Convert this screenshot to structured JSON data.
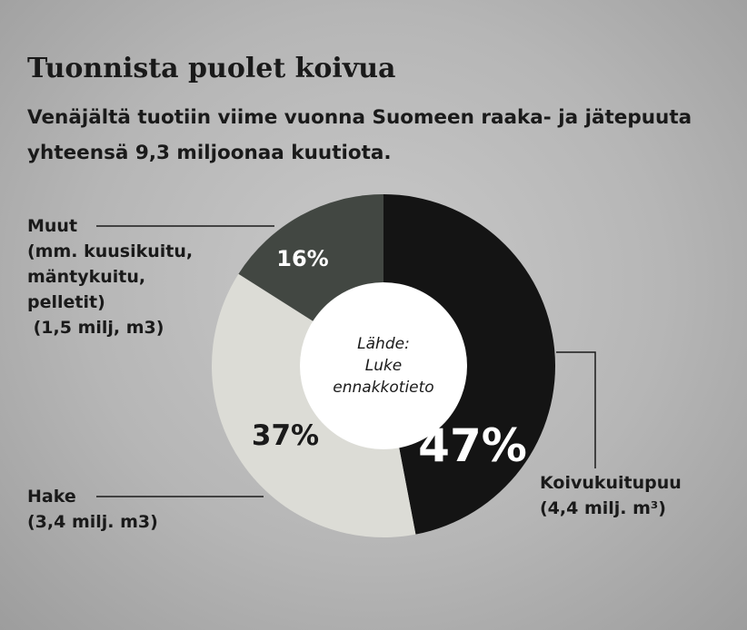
{
  "chart_data": {
    "type": "pie",
    "title": "Tuonnista puolet koivua",
    "subtitle": "Venäjältä tuotiin viime vuonna Suomeen raaka- ja jätepuuta yhteensä 9,3 miljoonaa kuutiota.",
    "source_lines": [
      "Lähde:",
      "Luke",
      "ennakkotieto"
    ],
    "slices": [
      {
        "label_lines": [
          "Koivukuitupuu",
          "(4,4 milj. m³)"
        ],
        "value": 47,
        "pct_label": "47%",
        "color": "#141414",
        "text_color": "#ffffff"
      },
      {
        "label_lines": [
          "Hake",
          "(3,4 milj. m3)"
        ],
        "value": 37,
        "pct_label": "37%",
        "color": "#dcdcd6",
        "text_color": "#1a1a1a"
      },
      {
        "label_lines": [
          "Muut",
          "(mm. kuusikuitu,",
          "mäntykuitu,",
          "pelletit)",
          " (1,5 milj, m3)"
        ],
        "value": 16,
        "pct_label": "16%",
        "color": "#424742",
        "text_color": "#ffffff"
      }
    ]
  }
}
